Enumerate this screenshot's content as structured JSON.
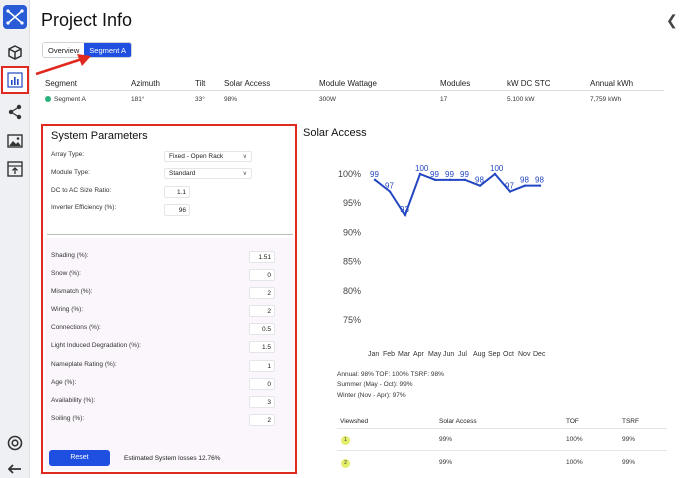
{
  "page": {
    "title": "Project Info"
  },
  "segment_tabs": [
    "Overview",
    "Segment A"
  ],
  "segment_table": {
    "headers": [
      "Segment",
      "Azimuth",
      "Tilt",
      "Solar Access",
      "Module Wattage",
      "Modules",
      "kW DC STC",
      "Annual kWh"
    ],
    "row": [
      "Segment A",
      "181°",
      "33°",
      "98%",
      "300W",
      "17",
      "5.100 kW",
      "7,759 kWh"
    ]
  },
  "system_parameters": {
    "title": "System Parameters",
    "array_type": {
      "label": "Array Type:",
      "value": "Fixed - Open Rack"
    },
    "module_type": {
      "label": "Module Type:",
      "value": "Standard"
    },
    "dc_ac_ratio": {
      "label": "DC to AC Size Ratio:",
      "value": "1.1"
    },
    "inverter_efficiency": {
      "label": "Inverter Efficiency (%):",
      "value": "96"
    },
    "losses": [
      {
        "label": "Shading (%):",
        "value": "1.51"
      },
      {
        "label": "Snow (%):",
        "value": "0"
      },
      {
        "label": "Mismatch (%):",
        "value": "2"
      },
      {
        "label": "Wiring (%):",
        "value": "2"
      },
      {
        "label": "Connections (%):",
        "value": "0.5"
      },
      {
        "label": "Light Induced Degradation (%):",
        "value": "1.5"
      },
      {
        "label": "Nameplate Rating (%):",
        "value": "1"
      },
      {
        "label": "Age (%):",
        "value": "0"
      },
      {
        "label": "Availability (%):",
        "value": "3"
      },
      {
        "label": "Soiling (%):",
        "value": "2"
      }
    ],
    "reset_label": "Reset",
    "estimated_losses": "Estimated System losses 12.76%"
  },
  "solar_access": {
    "title": "Solar Access",
    "stats": [
      "Annual: 98%   TOF: 100%   TSRF: 98%",
      "Summer (May - Oct): 99%",
      "Winter (Nov - Apr): 97%"
    ]
  },
  "chart_data": {
    "type": "line",
    "categories": [
      "Jan",
      "Feb",
      "Mar",
      "Apr",
      "May",
      "Jun",
      "Jul",
      "Aug",
      "Sep",
      "Oct",
      "Nov",
      "Dec"
    ],
    "values": [
      99,
      97,
      93,
      100,
      99,
      99,
      99,
      98,
      100,
      97,
      98,
      98
    ],
    "y_ticks": [
      "100%",
      "95%",
      "90%",
      "85%",
      "80%",
      "75%"
    ],
    "ylim": [
      75,
      100
    ],
    "color": "#2346c2"
  },
  "viewshed_table": {
    "headers": [
      "Viewshed",
      "Solar Access",
      "TOF",
      "TSRF"
    ],
    "rows": [
      {
        "badge": "1",
        "values": [
          "99%",
          "100%",
          "99%"
        ]
      },
      {
        "badge": "2",
        "values": [
          "99%",
          "100%",
          "99%"
        ]
      }
    ]
  },
  "icons": [
    "app-logo-icon",
    "cube-icon",
    "bar-chart-icon",
    "share-icon",
    "image-icon",
    "upload-icon",
    "help-icon",
    "back-arrow-icon"
  ],
  "colors": {
    "accent": "#1f4fe0",
    "highlight": "#e02a1f"
  }
}
